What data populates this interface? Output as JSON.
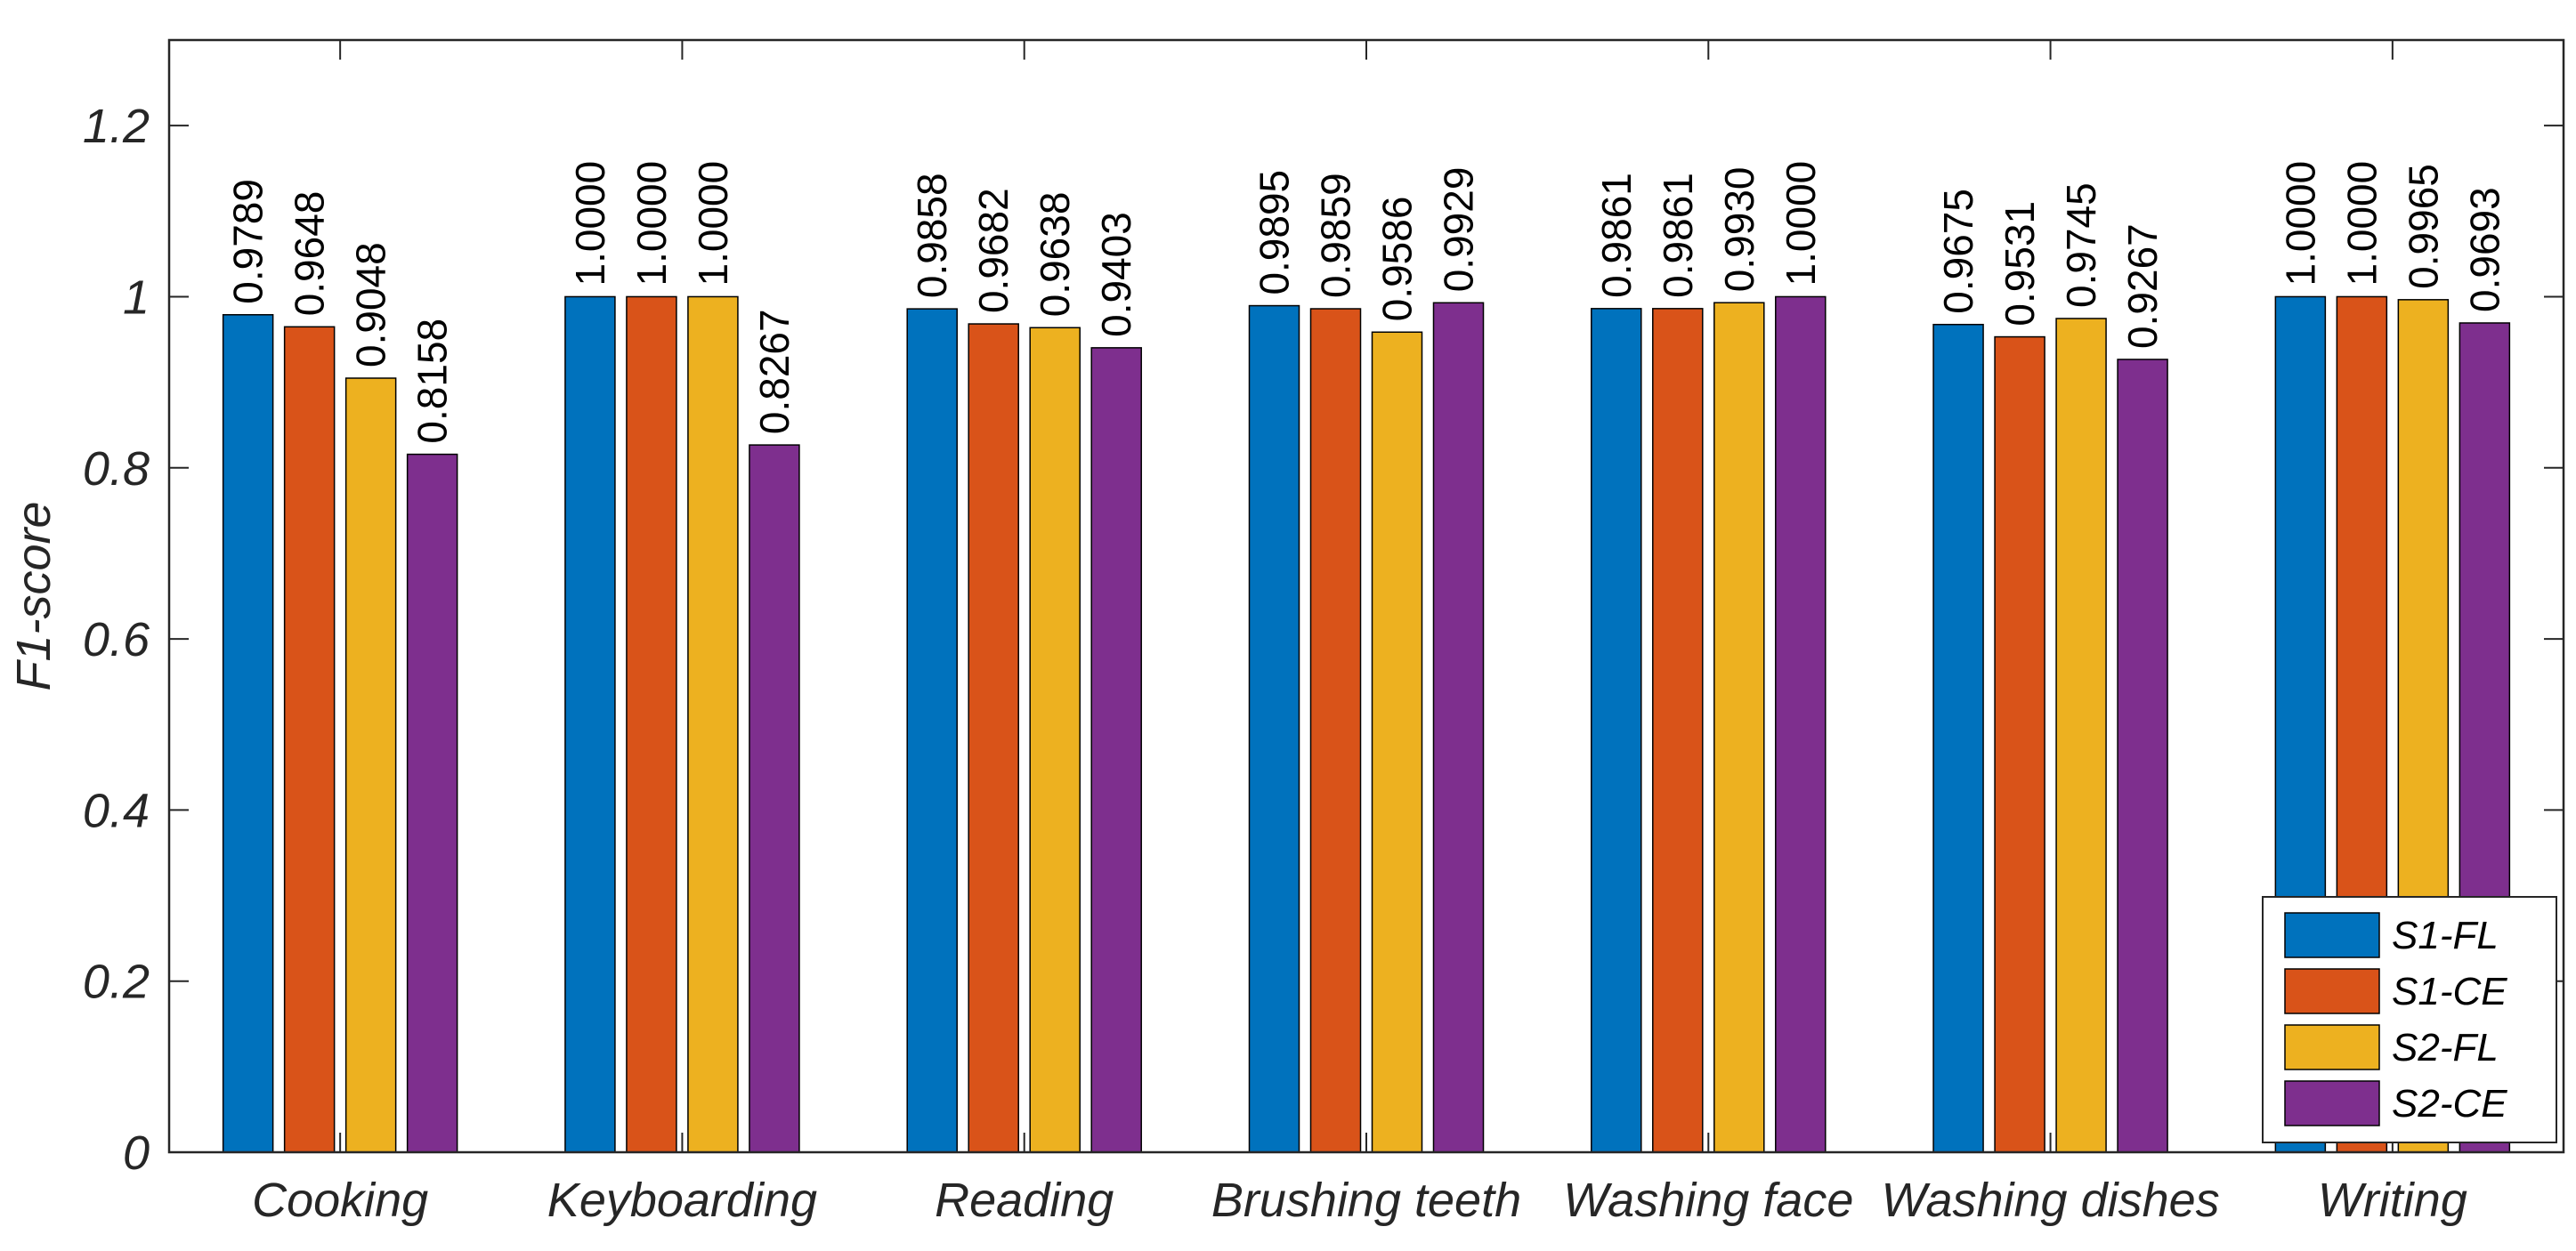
{
  "chart_data": {
    "type": "bar",
    "title": "",
    "xlabel": "",
    "ylabel": "F1-score",
    "ylim": [
      0,
      1.3
    ],
    "yticks": [
      "0",
      "0.2",
      "0.4",
      "0.6",
      "0.8",
      "1",
      "1.2"
    ],
    "ytick_values": [
      0,
      0.2,
      0.4,
      0.6,
      0.8,
      1.0,
      1.2
    ],
    "categories": [
      "Cooking",
      "Keyboarding",
      "Reading",
      "Brushing teeth",
      "Washing face",
      "Washing dishes",
      "Writing"
    ],
    "series": [
      {
        "name": "S1-FL",
        "color": "#0072BD",
        "values": [
          0.9789,
          1.0,
          0.9858,
          0.9895,
          0.9861,
          0.9675,
          1.0
        ],
        "labels": [
          "0.9789",
          "1.0000",
          "0.9858",
          "0.9895",
          "0.9861",
          "0.9675",
          "1.0000"
        ]
      },
      {
        "name": "S1-CE",
        "color": "#D95319",
        "values": [
          0.9648,
          1.0,
          0.9682,
          0.9859,
          0.9861,
          0.9531,
          1.0
        ],
        "labels": [
          "0.9648",
          "1.0000",
          "0.9682",
          "0.9859",
          "0.9861",
          "0.9531",
          "1.0000"
        ]
      },
      {
        "name": "S2-FL",
        "color": "#EDB120",
        "values": [
          0.9048,
          1.0,
          0.9638,
          0.9586,
          0.993,
          0.9745,
          0.9965
        ],
        "labels": [
          "0.9048",
          "1.0000",
          "0.9638",
          "0.9586",
          "0.9930",
          "0.9745",
          "0.9965"
        ]
      },
      {
        "name": "S2-CE",
        "color": "#7E2F8E",
        "values": [
          0.8158,
          0.8267,
          0.9403,
          0.9929,
          1.0,
          0.9267,
          0.9693
        ],
        "labels": [
          "0.8158",
          "0.8267",
          "0.9403",
          "0.9929",
          "1.0000",
          "0.9267",
          "0.9693"
        ]
      }
    ],
    "legend_position": "bottom-right",
    "grid": false
  }
}
